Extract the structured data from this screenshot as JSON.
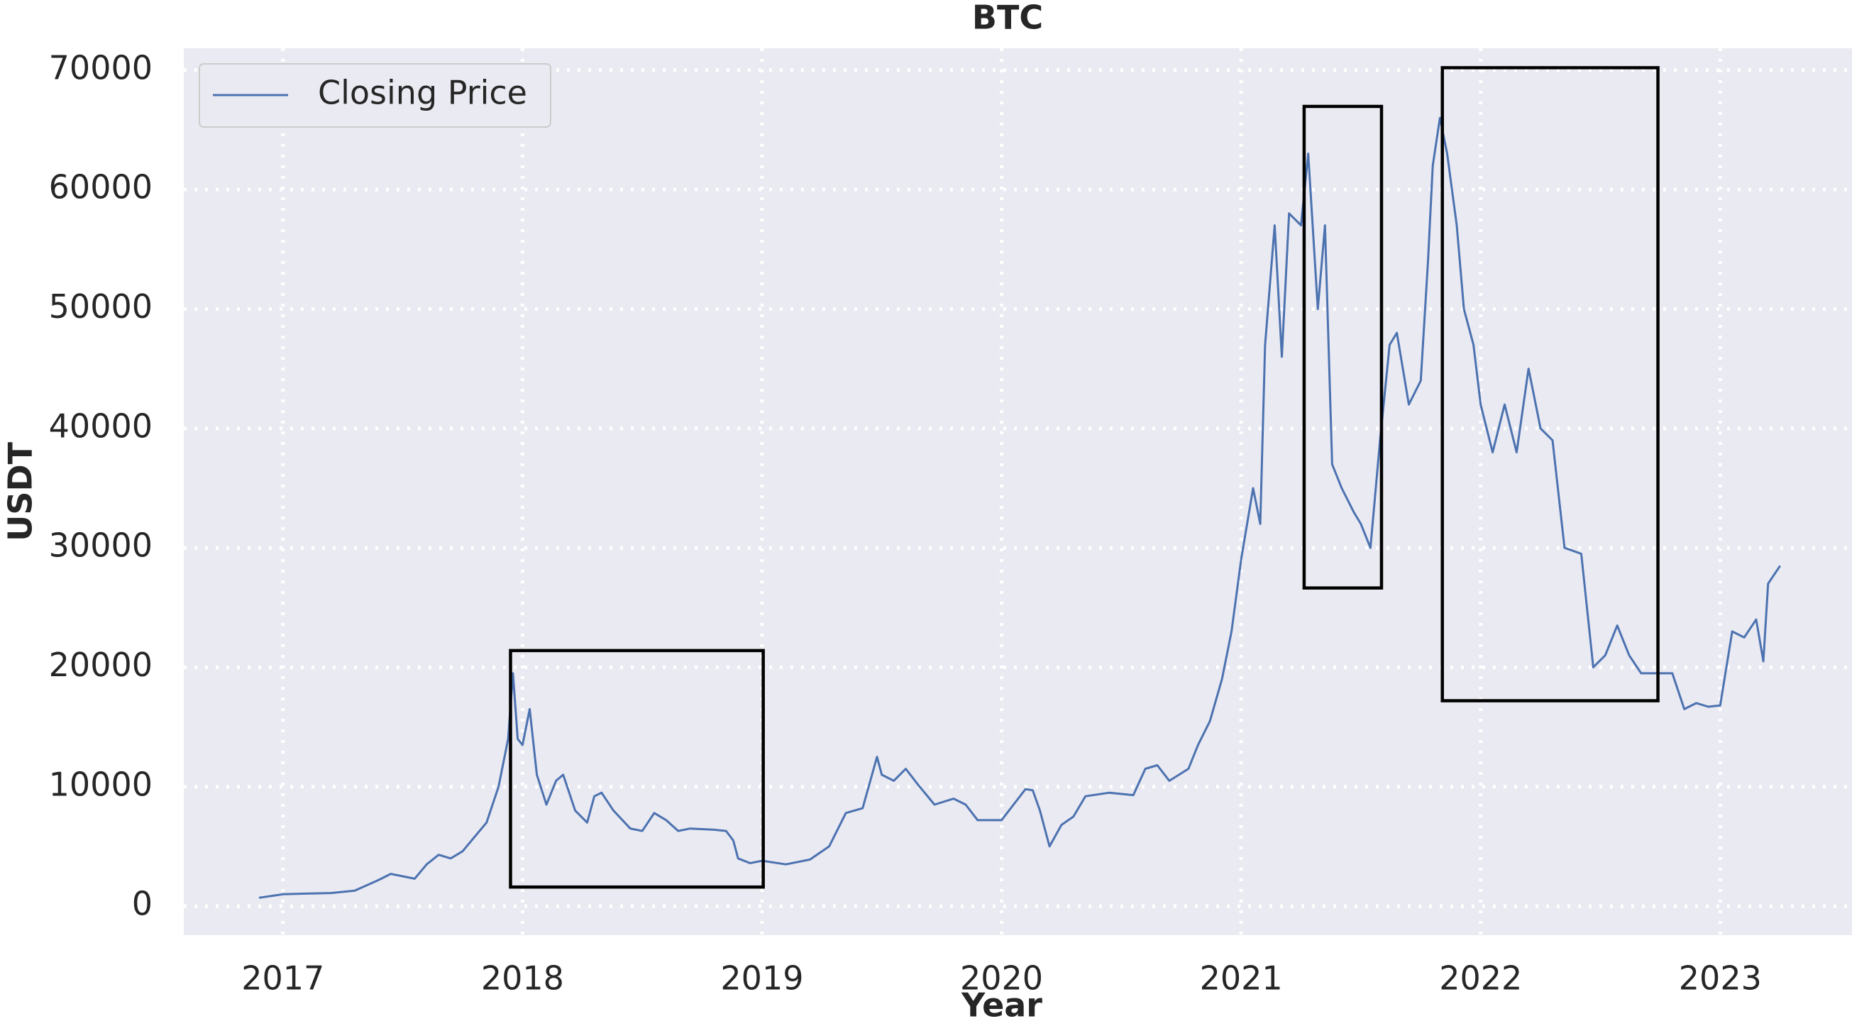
{
  "chart_data": {
    "type": "line",
    "title": "BTC",
    "xlabel": "Year",
    "ylabel": "USDT",
    "x": [
      2016.9,
      2017.0,
      2017.1,
      2017.2,
      2017.3,
      2017.4,
      2017.45,
      2017.5,
      2017.55,
      2017.6,
      2017.65,
      2017.7,
      2017.75,
      2017.8,
      2017.85,
      2017.9,
      2017.94,
      2017.96,
      2017.98,
      2018.0,
      2018.03,
      2018.06,
      2018.1,
      2018.14,
      2018.17,
      2018.22,
      2018.27,
      2018.3,
      2018.33,
      2018.38,
      2018.45,
      2018.5,
      2018.55,
      2018.6,
      2018.65,
      2018.7,
      2018.8,
      2018.85,
      2018.88,
      2018.9,
      2018.95,
      2019.0,
      2019.1,
      2019.2,
      2019.28,
      2019.35,
      2019.42,
      2019.48,
      2019.5,
      2019.55,
      2019.6,
      2019.65,
      2019.72,
      2019.8,
      2019.85,
      2019.9,
      2019.95,
      2020.0,
      2020.05,
      2020.1,
      2020.13,
      2020.16,
      2020.2,
      2020.25,
      2020.3,
      2020.35,
      2020.45,
      2020.55,
      2020.6,
      2020.65,
      2020.7,
      2020.78,
      2020.82,
      2020.87,
      2020.92,
      2020.96,
      2021.0,
      2021.05,
      2021.08,
      2021.1,
      2021.14,
      2021.17,
      2021.2,
      2021.25,
      2021.28,
      2021.32,
      2021.35,
      2021.38,
      2021.42,
      2021.47,
      2021.5,
      2021.54,
      2021.58,
      2021.62,
      2021.65,
      2021.7,
      2021.75,
      2021.78,
      2021.8,
      2021.83,
      2021.86,
      2021.9,
      2021.93,
      2021.97,
      2022.0,
      2022.05,
      2022.1,
      2022.15,
      2022.2,
      2022.25,
      2022.3,
      2022.35,
      2022.42,
      2022.47,
      2022.52,
      2022.57,
      2022.62,
      2022.67,
      2022.72,
      2022.8,
      2022.85,
      2022.9,
      2022.95,
      2023.0,
      2023.05,
      2023.1,
      2023.15,
      2023.18,
      2023.2,
      2023.25
    ],
    "series": [
      {
        "name": "Closing Price",
        "color": "#4c72b0",
        "values": [
          700,
          1000,
          1050,
          1100,
          1300,
          2200,
          2700,
          2500,
          2300,
          3500,
          4300,
          4000,
          4600,
          5800,
          7000,
          10000,
          14000,
          19500,
          14000,
          13500,
          16500,
          11000,
          8500,
          10500,
          11000,
          8000,
          7000,
          9200,
          9500,
          8000,
          6500,
          6300,
          7800,
          7200,
          6300,
          6500,
          6400,
          6300,
          5500,
          4000,
          3600,
          3800,
          3500,
          3900,
          5000,
          7800,
          8200,
          12500,
          11000,
          10500,
          11500,
          10200,
          8500,
          9000,
          8500,
          7200,
          7200,
          7200,
          8500,
          9800,
          9700,
          8000,
          5000,
          6800,
          7500,
          9200,
          9500,
          9300,
          11500,
          11800,
          10500,
          11500,
          13500,
          15500,
          19000,
          23000,
          29000,
          35000,
          32000,
          47000,
          57000,
          46000,
          58000,
          57000,
          63000,
          50000,
          57000,
          37000,
          35000,
          33000,
          32000,
          30000,
          39000,
          47000,
          48000,
          42000,
          44000,
          54000,
          62000,
          66000,
          63000,
          57000,
          50000,
          47000,
          42000,
          38000,
          42000,
          38000,
          45000,
          40000,
          39000,
          30000,
          29500,
          20000,
          21000,
          23500,
          21000,
          19500,
          19500,
          19500,
          16500,
          17000,
          16700,
          16800,
          23000,
          22500,
          24000,
          20500,
          27000,
          28500
        ]
      }
    ],
    "xlim": [
      2016.586,
      2023.55
    ],
    "xticks": [
      2017,
      2018,
      2019,
      2020,
      2021,
      2022,
      2023
    ],
    "ylim": [
      -2430,
      71830
    ],
    "yticks": [
      0,
      10000,
      20000,
      30000,
      40000,
      50000,
      60000,
      70000
    ],
    "grid": true,
    "legend": "upper left",
    "highlights": [
      {
        "xlim": [
          2017.95,
          2019.005
        ],
        "ylim": [
          1600,
          21400
        ]
      },
      {
        "xlim": [
          2021.263,
          2021.586
        ],
        "ylim": [
          26640,
          66960
        ]
      },
      {
        "xlim": [
          2021.84,
          2022.74
        ],
        "ylim": [
          17200,
          70200
        ]
      }
    ]
  }
}
